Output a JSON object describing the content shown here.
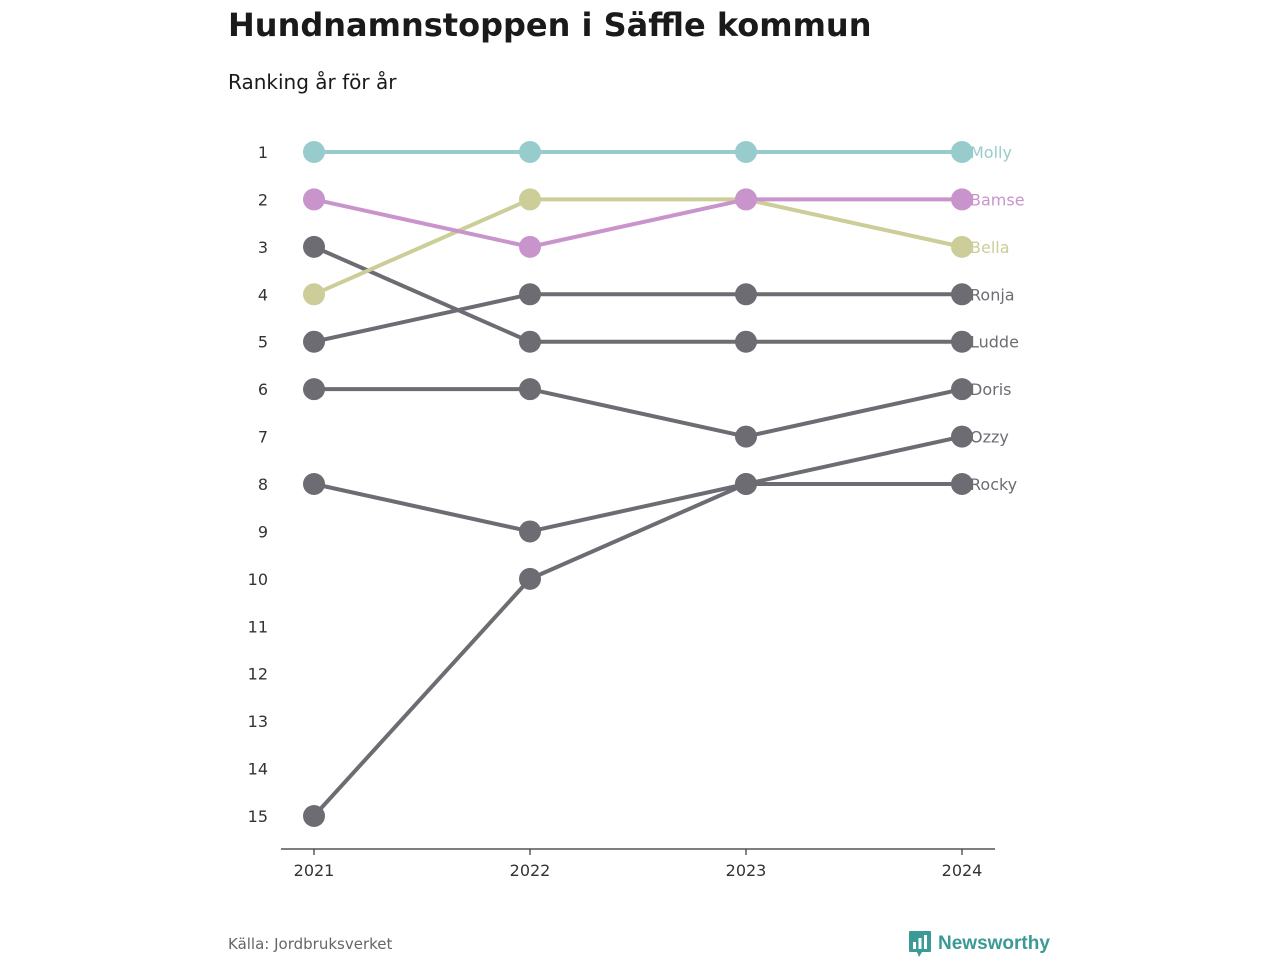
{
  "header": {
    "title": "Hundnamnstoppen i Säffle kommun",
    "subtitle": "Ranking år för år"
  },
  "footer": {
    "source": "Källa: Jordbruksverket",
    "brand": "Newsworthy",
    "brand_icon": "bar-chart-speech-bubble-icon",
    "brand_color": "#3b9a95"
  },
  "chart_data": {
    "type": "line",
    "subtype": "bump",
    "x": [
      "2021",
      "2022",
      "2023",
      "2024"
    ],
    "y_ticks": [
      "1",
      "2",
      "3",
      "4",
      "5",
      "6",
      "7",
      "8",
      "9",
      "10",
      "11",
      "12",
      "13",
      "14",
      "15"
    ],
    "ylim": [
      1,
      15
    ],
    "y_inverted": true,
    "grid": false,
    "legend": "direct-labels-right",
    "series": [
      {
        "name": "Ronja",
        "color": "#6d6c73",
        "values": [
          5,
          4,
          4,
          4
        ]
      },
      {
        "name": "Ludde",
        "color": "#6d6c73",
        "values": [
          3,
          5,
          5,
          5
        ]
      },
      {
        "name": "Doris",
        "color": "#6d6c73",
        "values": [
          6,
          6,
          7,
          6
        ]
      },
      {
        "name": "Ozzy",
        "color": "#6d6c73",
        "values": [
          15,
          10,
          8,
          7
        ]
      },
      {
        "name": "Rocky",
        "color": "#6d6c73",
        "values": [
          8,
          9,
          8,
          8
        ]
      },
      {
        "name": "Bella",
        "color": "#cccd98",
        "values": [
          4,
          2,
          2,
          3
        ]
      },
      {
        "name": "Bamse",
        "color": "#c994cc",
        "values": [
          2,
          3,
          2,
          2
        ]
      },
      {
        "name": "Molly",
        "color": "#98cbcb",
        "values": [
          1,
          1,
          1,
          1
        ]
      }
    ]
  }
}
